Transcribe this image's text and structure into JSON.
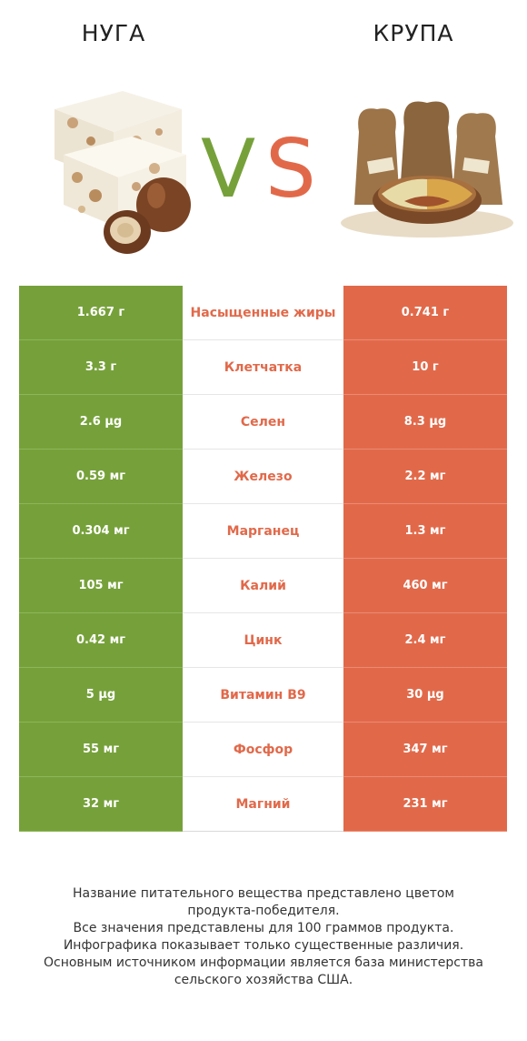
{
  "header": {
    "left_title": "НУГА",
    "right_title": "КРУПА",
    "vs_text": "VS",
    "left_image_icon": "nougat-hazelnut-image",
    "right_image_icon": "grain-sacks-bowl-image"
  },
  "colors": {
    "left": "#76a13a",
    "right": "#e1694a",
    "vs_v": "#76a13a",
    "vs_s": "#e1694a"
  },
  "chart_data": {
    "type": "table",
    "columns": [
      "НУГА",
      "",
      "КРУПА"
    ],
    "rows": [
      {
        "nutrient": "Насыщенные жиры",
        "left": "1.667 г",
        "right": "0.741 г",
        "winner": "right"
      },
      {
        "nutrient": "Клетчатка",
        "left": "3.3 г",
        "right": "10 г",
        "winner": "right"
      },
      {
        "nutrient": "Селен",
        "left": "2.6 µg",
        "right": "8.3 µg",
        "winner": "right"
      },
      {
        "nutrient": "Железо",
        "left": "0.59 мг",
        "right": "2.2 мг",
        "winner": "right"
      },
      {
        "nutrient": "Марганец",
        "left": "0.304 мг",
        "right": "1.3 мг",
        "winner": "right"
      },
      {
        "nutrient": "Калий",
        "left": "105 мг",
        "right": "460 мг",
        "winner": "right"
      },
      {
        "nutrient": "Цинк",
        "left": "0.42 мг",
        "right": "2.4 мг",
        "winner": "right"
      },
      {
        "nutrient": "Витамин B9",
        "left": "5 µg",
        "right": "30 µg",
        "winner": "right"
      },
      {
        "nutrient": "Фосфор",
        "left": "55 мг",
        "right": "347 мг",
        "winner": "right"
      },
      {
        "nutrient": "Магний",
        "left": "32 мг",
        "right": "231 мг",
        "winner": "right"
      }
    ]
  },
  "footer": {
    "lines": [
      "Название питательного вещества представлено цветом",
      "продукта-победителя.",
      "Все значения представлены для 100 граммов продукта.",
      "Инфографика показывает только существенные различия.",
      "Основным источником информации является база министерства",
      "сельского хозяйства США."
    ]
  }
}
